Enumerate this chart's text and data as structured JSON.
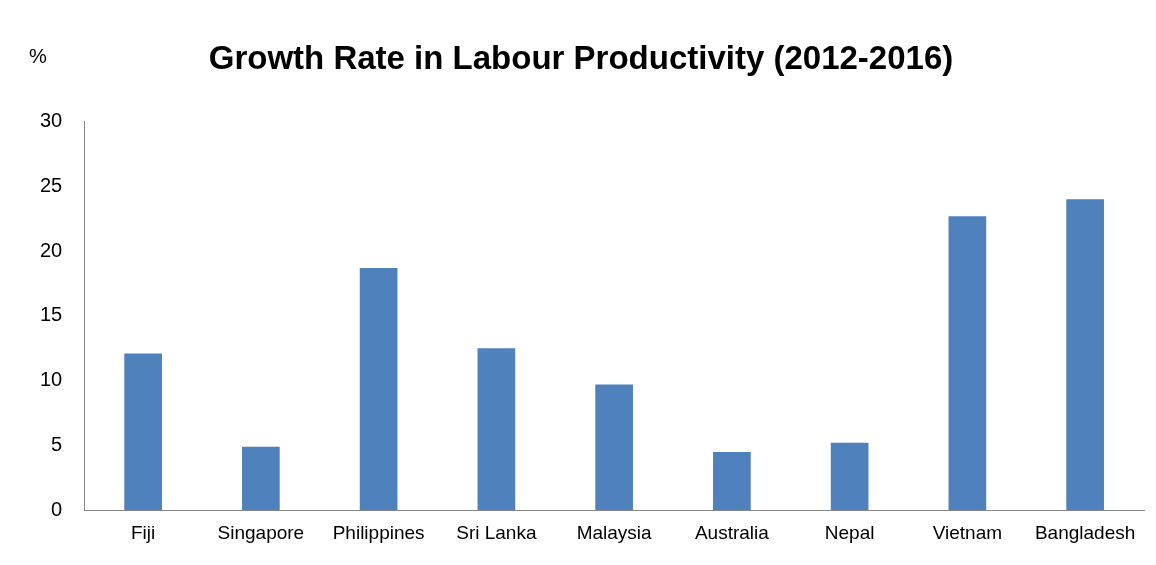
{
  "chart_data": {
    "type": "bar",
    "title": "Growth Rate in Labour Productivity (2012-2016)",
    "ylabel": "%",
    "categories": [
      "Fiji",
      "Singapore",
      "Philippines",
      "Sri Lanka",
      "Malaysia",
      "Australia",
      "Nepal",
      "Vietnam",
      "Bangladesh"
    ],
    "values": [
      12.1,
      4.9,
      18.7,
      12.5,
      9.7,
      4.5,
      5.2,
      22.7,
      24.0
    ],
    "color": "#4f81bd",
    "ylim": [
      0,
      30
    ],
    "yticks": [
      0,
      5,
      10,
      15,
      20,
      25,
      30
    ],
    "grid": false,
    "legend": false
  }
}
